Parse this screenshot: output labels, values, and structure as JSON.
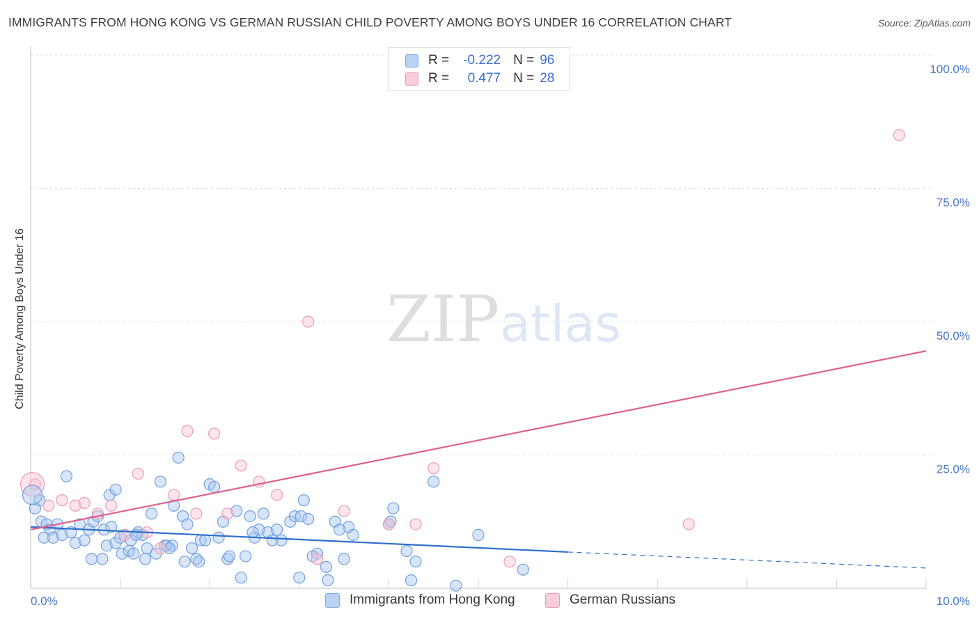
{
  "chart_data": {
    "type": "scatter",
    "title": "IMMIGRANTS FROM HONG KONG VS GERMAN RUSSIAN CHILD POVERTY AMONG BOYS UNDER 16 CORRELATION CHART",
    "source": "Source: ZipAtlas.com",
    "xlabel": "",
    "ylabel": "Child Poverty Among Boys Under 16",
    "xlim": [
      0,
      10
    ],
    "ylim": [
      0,
      100
    ],
    "x_ticks": [
      0,
      10
    ],
    "x_tick_labels": [
      "0.0%",
      "10.0%"
    ],
    "y_ticks": [
      25,
      50,
      75,
      100
    ],
    "y_tick_labels": [
      "25.0%",
      "50.0%",
      "75.0%",
      "100.0%"
    ],
    "watermark": "ZIPatlas",
    "legend": {
      "rows": [
        {
          "r_label": "R =",
          "r_value": "-0.222",
          "n_label": "N =",
          "n_value": "96"
        },
        {
          "r_label": "R =",
          "r_value": "0.477",
          "n_label": "N =",
          "n_value": "28"
        }
      ]
    },
    "series": [
      {
        "name": "Immigrants from Hong Kong",
        "color": "#6fa0e0",
        "fill": "#a9c6f0",
        "line_color": "#2c6fc9",
        "trend": {
          "x0": 0.0,
          "y0": 11.5,
          "x1": 6.0,
          "y1": 6.8,
          "x_dash_end": 10.0,
          "y_dash_end": 3.8
        },
        "points": [
          [
            0.05,
            15.0
          ],
          [
            0.1,
            16.5
          ],
          [
            0.12,
            12.5
          ],
          [
            0.18,
            12.0
          ],
          [
            0.22,
            11.0
          ],
          [
            0.25,
            9.5
          ],
          [
            0.3,
            12.0
          ],
          [
            0.35,
            10.0
          ],
          [
            0.4,
            21.0
          ],
          [
            0.45,
            10.5
          ],
          [
            0.5,
            8.5
          ],
          [
            0.55,
            12.0
          ],
          [
            0.6,
            9.0
          ],
          [
            0.65,
            11.0
          ],
          [
            0.7,
            12.5
          ],
          [
            0.75,
            13.5
          ],
          [
            0.8,
            5.5
          ],
          [
            0.82,
            11.0
          ],
          [
            0.85,
            8.0
          ],
          [
            0.88,
            17.5
          ],
          [
            0.9,
            11.5
          ],
          [
            0.95,
            18.5
          ],
          [
            0.95,
            8.5
          ],
          [
            1.0,
            9.5
          ],
          [
            1.02,
            6.5
          ],
          [
            1.05,
            10.0
          ],
          [
            1.1,
            7.0
          ],
          [
            1.12,
            9.0
          ],
          [
            1.15,
            6.5
          ],
          [
            1.2,
            10.5
          ],
          [
            1.25,
            10.0
          ],
          [
            1.28,
            5.5
          ],
          [
            1.3,
            7.5
          ],
          [
            1.35,
            14.0
          ],
          [
            1.4,
            6.5
          ],
          [
            1.45,
            20.0
          ],
          [
            1.5,
            8.0
          ],
          [
            1.52,
            8.0
          ],
          [
            1.58,
            8.0
          ],
          [
            1.6,
            15.5
          ],
          [
            1.65,
            24.5
          ],
          [
            1.7,
            13.5
          ],
          [
            1.72,
            5.0
          ],
          [
            1.75,
            12.0
          ],
          [
            1.8,
            7.5
          ],
          [
            1.85,
            5.5
          ],
          [
            1.9,
            9.0
          ],
          [
            1.95,
            9.0
          ],
          [
            2.0,
            19.5
          ],
          [
            2.05,
            19.0
          ],
          [
            2.1,
            9.5
          ],
          [
            2.15,
            12.5
          ],
          [
            2.2,
            5.5
          ],
          [
            2.22,
            6.0
          ],
          [
            2.3,
            14.5
          ],
          [
            2.35,
            2.0
          ],
          [
            2.4,
            6.0
          ],
          [
            2.45,
            13.5
          ],
          [
            2.5,
            9.5
          ],
          [
            2.55,
            11.0
          ],
          [
            2.6,
            14.0
          ],
          [
            2.65,
            10.5
          ],
          [
            2.7,
            9.0
          ],
          [
            2.75,
            11.0
          ],
          [
            2.8,
            9.0
          ],
          [
            2.9,
            12.5
          ],
          [
            2.95,
            13.5
          ],
          [
            3.0,
            2.0
          ],
          [
            3.02,
            13.5
          ],
          [
            3.05,
            16.5
          ],
          [
            3.1,
            13.0
          ],
          [
            3.2,
            6.5
          ],
          [
            3.3,
            4.0
          ],
          [
            3.32,
            1.5
          ],
          [
            3.4,
            12.5
          ],
          [
            3.5,
            5.5
          ],
          [
            3.55,
            11.5
          ],
          [
            3.6,
            10.0
          ],
          [
            4.0,
            12.0
          ],
          [
            4.02,
            12.5
          ],
          [
            4.05,
            15.0
          ],
          [
            4.25,
            1.5
          ],
          [
            4.3,
            5.0
          ],
          [
            4.5,
            20.0
          ],
          [
            4.75,
            0.5
          ],
          [
            5.0,
            10.0
          ],
          [
            5.5,
            3.5
          ],
          [
            0.15,
            9.5
          ],
          [
            0.68,
            5.5
          ],
          [
            1.18,
            10.0
          ],
          [
            1.55,
            7.5
          ],
          [
            1.88,
            5.0
          ],
          [
            2.48,
            10.5
          ],
          [
            3.15,
            6.0
          ],
          [
            3.45,
            11.0
          ],
          [
            4.2,
            7.0
          ]
        ]
      },
      {
        "name": "German Russians",
        "color": "#ee9ab5",
        "fill": "#f7c4d4",
        "line_color": "#e0608c",
        "trend": {
          "x0": 0.0,
          "y0": 11.0,
          "x1": 10.0,
          "y1": 44.5
        },
        "points": [
          [
            0.05,
            19.5
          ],
          [
            0.2,
            15.5
          ],
          [
            0.35,
            16.5
          ],
          [
            0.5,
            15.5
          ],
          [
            0.6,
            16.0
          ],
          [
            0.75,
            14.0
          ],
          [
            0.9,
            15.5
          ],
          [
            1.05,
            10.0
          ],
          [
            1.2,
            21.5
          ],
          [
            1.3,
            10.5
          ],
          [
            1.45,
            7.5
          ],
          [
            1.6,
            17.5
          ],
          [
            1.75,
            29.5
          ],
          [
            1.85,
            14.0
          ],
          [
            2.05,
            29.0
          ],
          [
            2.2,
            14.0
          ],
          [
            2.35,
            23.0
          ],
          [
            2.55,
            20.0
          ],
          [
            2.75,
            17.5
          ],
          [
            3.1,
            50.0
          ],
          [
            3.2,
            5.5
          ],
          [
            3.5,
            14.5
          ],
          [
            4.0,
            12.0
          ],
          [
            4.3,
            12.0
          ],
          [
            4.5,
            22.5
          ],
          [
            5.35,
            5.0
          ],
          [
            7.35,
            12.0
          ],
          [
            9.7,
            85.0
          ]
        ]
      }
    ]
  }
}
